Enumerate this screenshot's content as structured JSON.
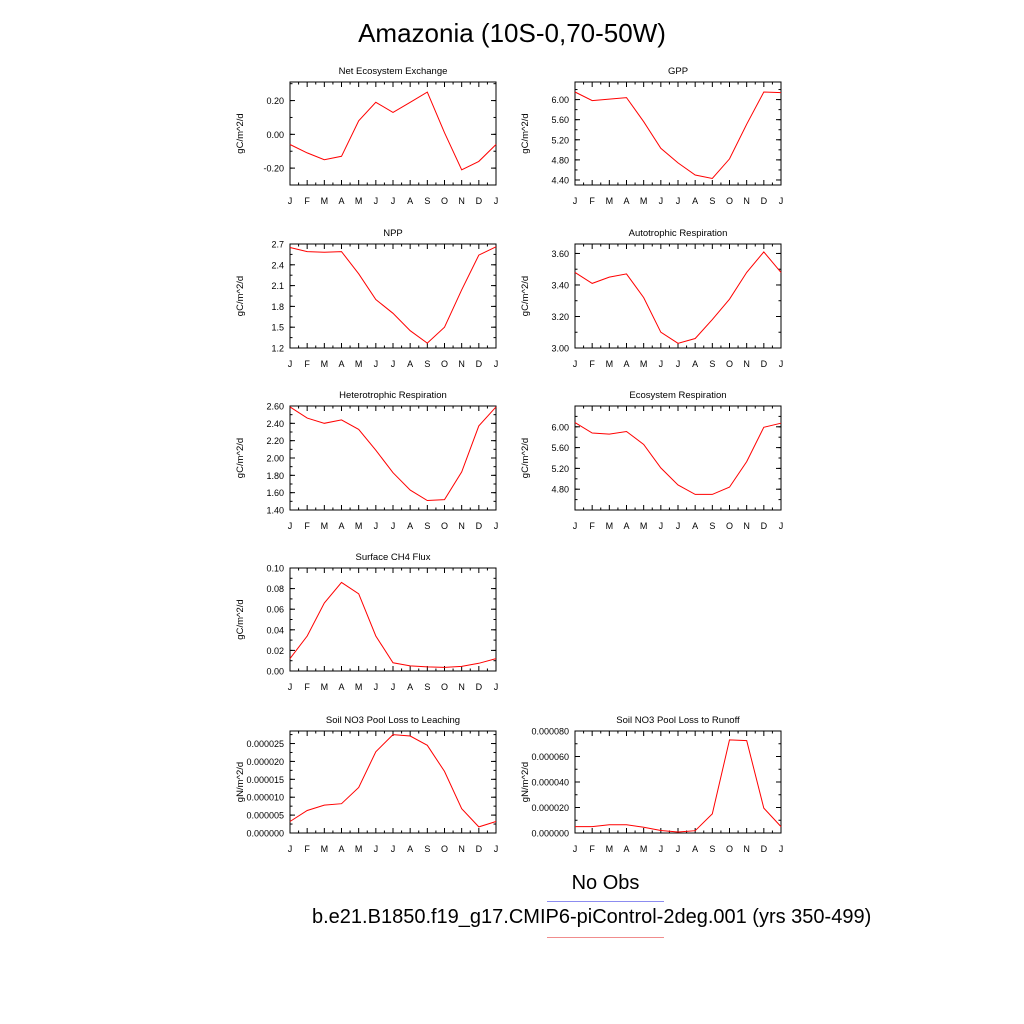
{
  "page": {
    "title": "Amazonia (10S-0,70-50W)",
    "legend_obs": "No Obs",
    "legend_case": "b.e21.B1850.f19_g17.CMIP6-piControl-2deg.001 (yrs 350-499)",
    "obs_color": "#8c8cf0",
    "case_color": "#f08c8c",
    "line_color": "#ff0000"
  },
  "chart_data": [
    {
      "type": "line",
      "title": "Net Ecosystem Exchange",
      "ylabel": "gC/m^2/d",
      "x": [
        "J",
        "F",
        "M",
        "A",
        "M",
        "J",
        "J",
        "A",
        "S",
        "O",
        "N",
        "D",
        "J"
      ],
      "ylim": [
        -0.3,
        0.31
      ],
      "yticks": [
        -0.2,
        0.0,
        0.2
      ],
      "yticklabels": [
        "-0.20",
        "0.00",
        "0.20"
      ],
      "values": [
        -0.06,
        -0.11,
        -0.15,
        -0.13,
        0.08,
        0.19,
        0.13,
        0.19,
        0.25,
        0.01,
        -0.21,
        -0.16,
        -0.06
      ]
    },
    {
      "type": "line",
      "title": "GPP",
      "ylabel": "gC/m^2/d",
      "x": [
        "J",
        "F",
        "M",
        "A",
        "M",
        "J",
        "J",
        "A",
        "S",
        "O",
        "N",
        "D",
        "J"
      ],
      "ylim": [
        4.3,
        6.35
      ],
      "yticks": [
        4.4,
        4.8,
        5.2,
        5.6,
        6.0
      ],
      "yticklabels": [
        "4.40",
        "4.80",
        "5.20",
        "5.60",
        "6.00"
      ],
      "values": [
        6.15,
        5.98,
        6.01,
        6.04,
        5.56,
        5.03,
        4.74,
        4.5,
        4.43,
        4.82,
        5.51,
        6.15,
        6.14
      ]
    },
    {
      "type": "line",
      "title": "NPP",
      "ylabel": "gC/m^2/d",
      "x": [
        "J",
        "F",
        "M",
        "A",
        "M",
        "J",
        "J",
        "A",
        "S",
        "O",
        "N",
        "D",
        "J"
      ],
      "ylim": [
        1.2,
        2.7
      ],
      "yticks": [
        1.2,
        1.5,
        1.8,
        2.1,
        2.4,
        2.7
      ],
      "yticklabels": [
        "1.2",
        "1.5",
        "1.8",
        "2.1",
        "2.4",
        "2.7"
      ],
      "values": [
        2.65,
        2.59,
        2.58,
        2.59,
        2.27,
        1.9,
        1.7,
        1.45,
        1.27,
        1.5,
        2.04,
        2.54,
        2.66
      ]
    },
    {
      "type": "line",
      "title": "Autotrophic Respiration",
      "ylabel": "gC/m^2/d",
      "x": [
        "J",
        "F",
        "M",
        "A",
        "M",
        "J",
        "J",
        "A",
        "S",
        "O",
        "N",
        "D",
        "J"
      ],
      "ylim": [
        3.0,
        3.66
      ],
      "yticks": [
        3.0,
        3.2,
        3.4,
        3.6
      ],
      "yticklabels": [
        "3.00",
        "3.20",
        "3.40",
        "3.60"
      ],
      "values": [
        3.48,
        3.41,
        3.45,
        3.47,
        3.32,
        3.1,
        3.03,
        3.06,
        3.18,
        3.31,
        3.48,
        3.61,
        3.48
      ]
    },
    {
      "type": "line",
      "title": "Heterotrophic Respiration",
      "ylabel": "gC/m^2/d",
      "x": [
        "J",
        "F",
        "M",
        "A",
        "M",
        "J",
        "J",
        "A",
        "S",
        "O",
        "N",
        "D",
        "J"
      ],
      "ylim": [
        1.4,
        2.6
      ],
      "yticks": [
        1.4,
        1.6,
        1.8,
        2.0,
        2.2,
        2.4,
        2.6
      ],
      "yticklabels": [
        "1.40",
        "1.60",
        "1.80",
        "2.00",
        "2.20",
        "2.40",
        "2.60"
      ],
      "values": [
        2.59,
        2.46,
        2.4,
        2.44,
        2.33,
        2.09,
        1.83,
        1.63,
        1.51,
        1.52,
        1.84,
        2.37,
        2.59
      ]
    },
    {
      "type": "line",
      "title": "Ecosystem Respiration",
      "ylabel": "gC/m^2/d",
      "x": [
        "J",
        "F",
        "M",
        "A",
        "M",
        "J",
        "J",
        "A",
        "S",
        "O",
        "N",
        "D",
        "J"
      ],
      "ylim": [
        4.4,
        6.4
      ],
      "yticks": [
        4.8,
        5.2,
        5.6,
        6.0
      ],
      "yticklabels": [
        "4.80",
        "5.20",
        "5.60",
        "6.00"
      ],
      "values": [
        6.08,
        5.88,
        5.86,
        5.91,
        5.66,
        5.21,
        4.88,
        4.7,
        4.7,
        4.84,
        5.33,
        5.99,
        6.07
      ]
    },
    {
      "type": "line",
      "title": "Surface CH4 Flux",
      "ylabel": "gC/m^2/d",
      "x": [
        "J",
        "F",
        "M",
        "A",
        "M",
        "J",
        "J",
        "A",
        "S",
        "O",
        "N",
        "D",
        "J"
      ],
      "ylim": [
        0.0,
        0.1
      ],
      "yticks": [
        0.0,
        0.02,
        0.04,
        0.06,
        0.08,
        0.1
      ],
      "yticklabels": [
        "0.00",
        "0.02",
        "0.04",
        "0.06",
        "0.08",
        "0.10"
      ],
      "values": [
        0.012,
        0.034,
        0.066,
        0.086,
        0.075,
        0.034,
        0.008,
        0.005,
        0.004,
        0.0035,
        0.0045,
        0.0075,
        0.012
      ]
    },
    {
      "type": "line",
      "title": "Soil NO3 Pool Loss to Leaching",
      "ylabel": "gN/m^2/d",
      "x": [
        "J",
        "F",
        "M",
        "A",
        "M",
        "J",
        "J",
        "A",
        "S",
        "O",
        "N",
        "D",
        "J"
      ],
      "ylim": [
        0.0,
        2.85e-05
      ],
      "yticks": [
        0.0,
        5e-06,
        1e-05,
        1.5e-05,
        2e-05,
        2.5e-05
      ],
      "yticklabels": [
        "0.000000",
        "0.000005",
        "0.000010",
        "0.000015",
        "0.000020",
        "0.000025"
      ],
      "values": [
        3.2e-06,
        6.3e-06,
        7.8e-06,
        8.2e-06,
        1.27e-05,
        2.27e-05,
        2.75e-05,
        2.71e-05,
        2.45e-05,
        1.72e-05,
        6.8e-06,
        1.7e-06,
        3.2e-06
      ]
    },
    {
      "type": "line",
      "title": "Soil NO3 Pool Loss to Runoff",
      "ylabel": "gN/m^2/d",
      "x": [
        "J",
        "F",
        "M",
        "A",
        "M",
        "J",
        "J",
        "A",
        "S",
        "O",
        "N",
        "D",
        "J"
      ],
      "ylim": [
        0.0,
        8e-05
      ],
      "yticks": [
        0.0,
        2e-05,
        4e-05,
        6e-05,
        8e-05
      ],
      "yticklabels": [
        "0.000000",
        "0.000020",
        "0.000040",
        "0.000060",
        "0.000080"
      ],
      "values": [
        5e-06,
        5e-06,
        6.5e-06,
        6.5e-06,
        4.5e-06,
        2e-06,
        8e-07,
        1.8e-06,
        1.5e-05,
        7.3e-05,
        7.25e-05,
        1.95e-05,
        5e-06
      ]
    }
  ]
}
